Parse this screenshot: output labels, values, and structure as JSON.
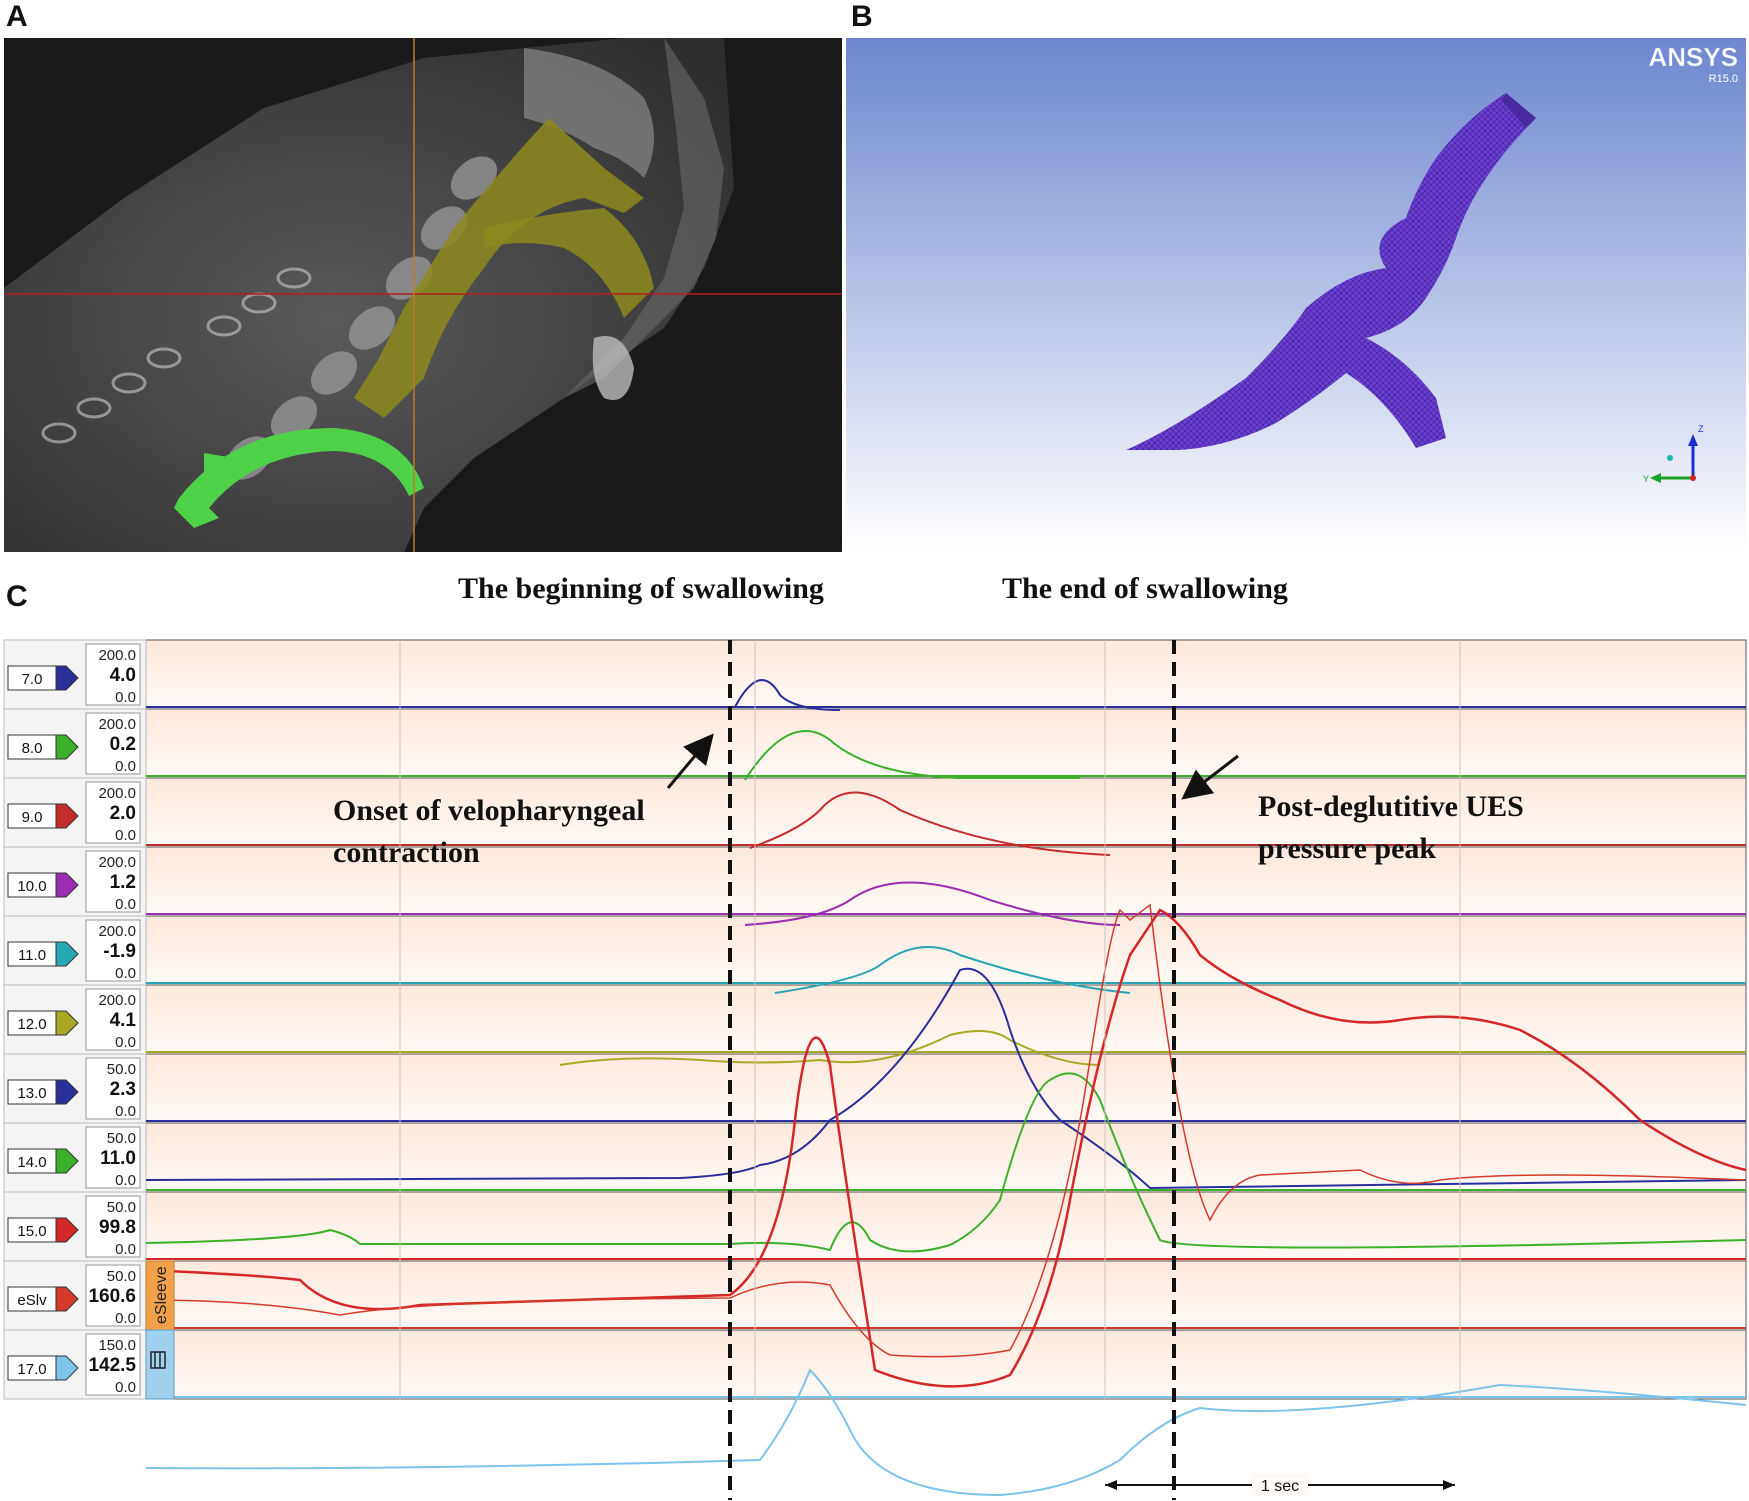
{
  "panels": {
    "a": {
      "letter": "A"
    },
    "b": {
      "letter": "B",
      "software_logo": "ANSYS",
      "software_version": "R15.0",
      "axis_labels": [
        "Z",
        "Y"
      ]
    },
    "c": {
      "letter": "C"
    }
  },
  "panel_c": {
    "header_begin": "The beginning of swallowing",
    "header_end": "The end of swallowing",
    "annotation_onset_line1": "Onset of velopharyngeal",
    "annotation_onset_line2": "contraction",
    "annotation_peak_line1": "Post-deglutitive  UES",
    "annotation_peak_line2": "pressure peak",
    "time_scale_label": "1 sec",
    "sleeve_label": "eSleeve"
  },
  "chart_data": {
    "type": "line",
    "x_unit": "time",
    "events": [
      "The beginning of swallowing",
      "The end of swallowing"
    ],
    "channels": [
      {
        "id": "7.0",
        "max": "200.0",
        "value": "4.0",
        "min": "0.0",
        "color": "#2a2f9a"
      },
      {
        "id": "8.0",
        "max": "200.0",
        "value": "0.2",
        "min": "0.0",
        "color": "#3bb02a"
      },
      {
        "id": "9.0",
        "max": "200.0",
        "value": "2.0",
        "min": "0.0",
        "color": "#c42b2b"
      },
      {
        "id": "10.0",
        "max": "200.0",
        "value": "1.2",
        "min": "0.0",
        "color": "#9b2db0"
      },
      {
        "id": "11.0",
        "max": "200.0",
        "value": "-1.9",
        "min": "0.0",
        "color": "#27a6b3"
      },
      {
        "id": "12.0",
        "max": "200.0",
        "value": "4.1",
        "min": "0.0",
        "color": "#a9a825"
      },
      {
        "id": "13.0",
        "max": "50.0",
        "value": "2.3",
        "min": "0.0",
        "color": "#2a2f9a"
      },
      {
        "id": "14.0",
        "max": "50.0",
        "value": "11.0",
        "min": "0.0",
        "color": "#3bb02a"
      },
      {
        "id": "15.0",
        "max": "50.0",
        "value": "99.8",
        "min": "0.0",
        "color": "#d42727"
      },
      {
        "id": "eSlv",
        "max": "50.0",
        "value": "160.6",
        "min": "0.0",
        "color": "#d43a2a"
      },
      {
        "id": "17.0",
        "max": "150.0",
        "value": "142.5",
        "min": "0.0",
        "color": "#7ec3ea"
      }
    ]
  }
}
